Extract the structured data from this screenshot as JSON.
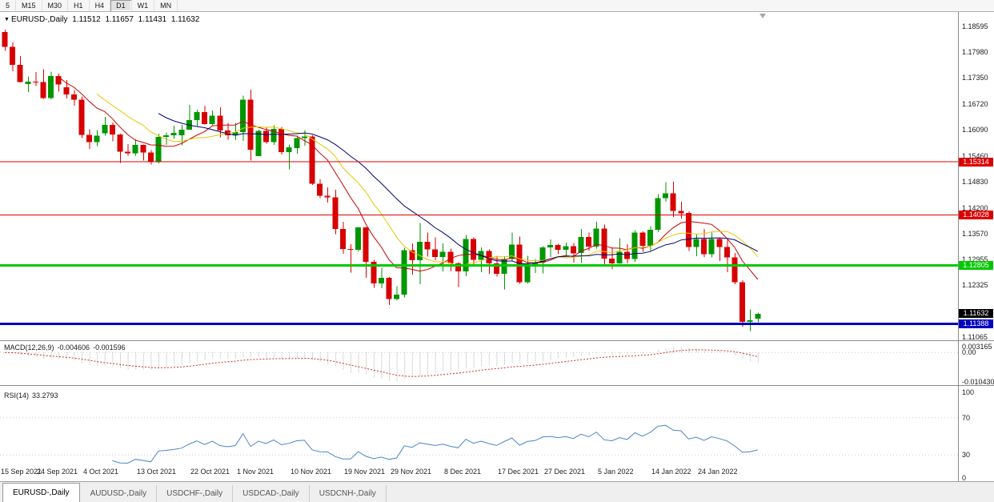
{
  "icons": {
    "symbol_dropdown": "▼"
  },
  "toolbar": {
    "timeframes": [
      {
        "label": "5",
        "active": false
      },
      {
        "label": "M15",
        "active": false
      },
      {
        "label": "M30",
        "active": false
      },
      {
        "label": "H1",
        "active": false
      },
      {
        "label": "H4",
        "active": false
      },
      {
        "label": "D1",
        "active": true
      },
      {
        "label": "W1",
        "active": false
      },
      {
        "label": "MN",
        "active": false
      }
    ]
  },
  "chart_header": {
    "symbol": "EURUSD-,Daily",
    "open": "1.11512",
    "high": "1.11657",
    "low": "1.11431",
    "close": "1.11632"
  },
  "price_axis_labels": [
    "1.18595",
    "1.17980",
    "1.17350",
    "1.16720",
    "1.16090",
    "1.15460",
    "1.14830",
    "1.14200",
    "1.13570",
    "1.12955",
    "1.12325",
    "1.11065"
  ],
  "bid_tag": {
    "label": "1.11632",
    "price": 1.11632,
    "color": "#000000"
  },
  "macd_panel": {
    "title": "MACD(12,26,9)",
    "value_main": "-0.004606",
    "value_signal": "-0.001596",
    "axis_labels": [
      "0.003165",
      "0.00",
      "-0.010430"
    ]
  },
  "rsi_panel": {
    "title": "RSI(14)",
    "value": "33.2793",
    "axis_labels": [
      "100",
      "70",
      "30",
      "0"
    ]
  },
  "time_axis": {
    "ticks": [
      {
        "i": 0,
        "label": "15 Sep 2021"
      },
      {
        "i": 7,
        "label": "24 Sep 2021"
      },
      {
        "i": 13,
        "label": "4 Oct 2021"
      },
      {
        "i": 20,
        "label": "13 Oct 2021"
      },
      {
        "i": 27,
        "label": "22 Oct 2021"
      },
      {
        "i": 33,
        "label": "1 Nov 2021"
      },
      {
        "i": 40,
        "label": "10 Nov 2021"
      },
      {
        "i": 47,
        "label": "19 Nov 2021"
      },
      {
        "i": 53,
        "label": "29 Nov 2021"
      },
      {
        "i": 60,
        "label": "8 Dec 2021"
      },
      {
        "i": 67,
        "label": "17 Dec 2021"
      },
      {
        "i": 73,
        "label": "27 Dec 2021"
      },
      {
        "i": 80,
        "label": "5 Jan 2022"
      },
      {
        "i": 87,
        "label": "14 Jan 2022"
      },
      {
        "i": 93,
        "label": "24 Jan 2022"
      }
    ]
  },
  "bottom_tabs": [
    {
      "label": "EURUSD-,Daily",
      "active": true
    },
    {
      "label": "AUDUSD-,Daily",
      "active": false
    },
    {
      "label": "USDCHF-,Daily",
      "active": false
    },
    {
      "label": "USDCAD-,Daily",
      "active": false
    },
    {
      "label": "USDCNH-,Daily",
      "active": false
    }
  ],
  "chart_data": {
    "type": "candlestick",
    "symbol": "EURUSD-",
    "timeframe": "Daily",
    "title": "EURUSD-,Daily",
    "last_ohlc": {
      "open": 1.11512,
      "high": 1.11657,
      "low": 1.11431,
      "close": 1.11632
    },
    "candle_colors": {
      "bull": "#009600",
      "bear": "#D80000"
    },
    "candle_format": [
      "date",
      "open",
      "high",
      "low",
      "close"
    ],
    "candles": [
      [
        "2021-09-15",
        1.1846,
        1.1852,
        1.18,
        1.181
      ],
      [
        "2021-09-16",
        1.181,
        1.1821,
        1.1751,
        1.1766
      ],
      [
        "2021-09-17",
        1.1766,
        1.1788,
        1.1724,
        1.1725
      ],
      [
        "2021-09-20",
        1.172,
        1.1738,
        1.17,
        1.1726
      ],
      [
        "2021-09-21",
        1.1726,
        1.1749,
        1.1715,
        1.1725
      ],
      [
        "2021-09-22",
        1.1725,
        1.1756,
        1.1684,
        1.1686
      ],
      [
        "2021-09-23",
        1.1686,
        1.175,
        1.1683,
        1.1739
      ],
      [
        "2021-09-24",
        1.1739,
        1.1745,
        1.1701,
        1.1719
      ],
      [
        "2021-09-27",
        1.1712,
        1.173,
        1.1685,
        1.1695
      ],
      [
        "2021-09-28",
        1.1695,
        1.1705,
        1.1667,
        1.1682
      ],
      [
        "2021-09-29",
        1.1682,
        1.169,
        1.1589,
        1.1597
      ],
      [
        "2021-09-30",
        1.1597,
        1.161,
        1.1563,
        1.1579
      ],
      [
        "2021-10-01",
        1.1579,
        1.1608,
        1.1569,
        1.1595
      ],
      [
        "2021-10-04",
        1.16,
        1.164,
        1.1595,
        1.1621
      ],
      [
        "2021-10-05",
        1.1621,
        1.1627,
        1.1581,
        1.1598
      ],
      [
        "2021-10-06",
        1.1598,
        1.16,
        1.1529,
        1.1556
      ],
      [
        "2021-10-07",
        1.1556,
        1.1574,
        1.1546,
        1.1552
      ],
      [
        "2021-10-08",
        1.1552,
        1.1586,
        1.1546,
        1.1572
      ],
      [
        "2021-10-11",
        1.1572,
        1.1573,
        1.1535,
        1.1554
      ],
      [
        "2021-10-12",
        1.1554,
        1.156,
        1.1525,
        1.1531
      ],
      [
        "2021-10-13",
        1.1531,
        1.16,
        1.1528,
        1.1592
      ],
      [
        "2021-10-14",
        1.1592,
        1.1602,
        1.1572,
        1.1596
      ],
      [
        "2021-10-15",
        1.1596,
        1.1619,
        1.1588,
        1.1601
      ],
      [
        "2021-10-18",
        1.1596,
        1.1621,
        1.1571,
        1.1609
      ],
      [
        "2021-10-19",
        1.1609,
        1.1669,
        1.1609,
        1.1633
      ],
      [
        "2021-10-20",
        1.1633,
        1.1658,
        1.1617,
        1.1652
      ],
      [
        "2021-10-21",
        1.1652,
        1.1667,
        1.1622,
        1.1623
      ],
      [
        "2021-10-22",
        1.1623,
        1.1656,
        1.162,
        1.1643
      ],
      [
        "2021-10-25",
        1.1643,
        1.1664,
        1.1591,
        1.1607
      ],
      [
        "2021-10-26",
        1.1607,
        1.1626,
        1.1585,
        1.1596
      ],
      [
        "2021-10-27",
        1.1596,
        1.1626,
        1.1584,
        1.1603
      ],
      [
        "2021-10-28",
        1.1603,
        1.1692,
        1.1582,
        1.1682
      ],
      [
        "2021-10-29",
        1.1682,
        1.1706,
        1.1535,
        1.1561
      ],
      [
        "2021-11-01",
        1.1545,
        1.1609,
        1.1545,
        1.1606
      ],
      [
        "2021-11-02",
        1.1606,
        1.1614,
        1.1575,
        1.1579
      ],
      [
        "2021-11-03",
        1.1579,
        1.162,
        1.1572,
        1.1611
      ],
      [
        "2021-11-04",
        1.1611,
        1.1616,
        1.1549,
        1.1555
      ],
      [
        "2021-11-05",
        1.1555,
        1.1573,
        1.1513,
        1.1567
      ],
      [
        "2021-11-08",
        1.1565,
        1.1595,
        1.1551,
        1.1589
      ],
      [
        "2021-11-09",
        1.1589,
        1.1608,
        1.157,
        1.1593
      ],
      [
        "2021-11-10",
        1.1593,
        1.1596,
        1.1475,
        1.1478
      ],
      [
        "2021-11-11",
        1.1478,
        1.1489,
        1.1443,
        1.1449
      ],
      [
        "2021-11-12",
        1.1449,
        1.147,
        1.1433,
        1.1445
      ],
      [
        "2021-11-15",
        1.1445,
        1.1464,
        1.1356,
        1.1369
      ],
      [
        "2021-11-16",
        1.1369,
        1.1386,
        1.1309,
        1.132
      ],
      [
        "2021-11-17",
        1.132,
        1.1332,
        1.1263,
        1.1318
      ],
      [
        "2021-11-18",
        1.1318,
        1.1374,
        1.1314,
        1.1373
      ],
      [
        "2021-11-19",
        1.1373,
        1.1374,
        1.125,
        1.1289
      ],
      [
        "2021-11-22",
        1.1289,
        1.1294,
        1.1226,
        1.1237
      ],
      [
        "2021-11-23",
        1.1237,
        1.1275,
        1.1225,
        1.125
      ],
      [
        "2021-11-24",
        1.125,
        1.1252,
        1.1184,
        1.1199
      ],
      [
        "2021-11-25",
        1.1199,
        1.123,
        1.1196,
        1.121
      ],
      [
        "2021-11-26",
        1.121,
        1.1323,
        1.1203,
        1.1317
      ],
      [
        "2021-11-29",
        1.1317,
        1.1334,
        1.1258,
        1.1293
      ],
      [
        "2021-11-30",
        1.1293,
        1.1383,
        1.1235,
        1.1338
      ],
      [
        "2021-12-01",
        1.1338,
        1.136,
        1.1302,
        1.1319
      ],
      [
        "2021-12-02",
        1.1319,
        1.1348,
        1.1293,
        1.1301
      ],
      [
        "2021-12-03",
        1.1301,
        1.1334,
        1.1266,
        1.1313
      ],
      [
        "2021-12-06",
        1.1313,
        1.1321,
        1.1267,
        1.1285
      ],
      [
        "2021-12-07",
        1.1285,
        1.1288,
        1.1228,
        1.1266
      ],
      [
        "2021-12-08",
        1.1266,
        1.1354,
        1.1254,
        1.1344
      ],
      [
        "2021-12-09",
        1.1344,
        1.1348,
        1.128,
        1.1294
      ],
      [
        "2021-12-10",
        1.1294,
        1.1324,
        1.1264,
        1.1315
      ],
      [
        "2021-12-13",
        1.1315,
        1.1319,
        1.126,
        1.1285
      ],
      [
        "2021-12-14",
        1.1285,
        1.1304,
        1.1253,
        1.126
      ],
      [
        "2021-12-15",
        1.126,
        1.1303,
        1.1222,
        1.1296
      ],
      [
        "2021-12-16",
        1.1296,
        1.136,
        1.1292,
        1.1331
      ],
      [
        "2021-12-17",
        1.1331,
        1.135,
        1.1236,
        1.124
      ],
      [
        "2021-12-20",
        1.124,
        1.1304,
        1.1237,
        1.1278
      ],
      [
        "2021-12-21",
        1.1278,
        1.1296,
        1.1262,
        1.1287
      ],
      [
        "2021-12-22",
        1.1287,
        1.1327,
        1.1261,
        1.1324
      ],
      [
        "2021-12-23",
        1.1324,
        1.1343,
        1.1301,
        1.133
      ],
      [
        "2021-12-24",
        1.133,
        1.1333,
        1.1308,
        1.1318
      ],
      [
        "2021-12-27",
        1.1318,
        1.1336,
        1.1304,
        1.1327
      ],
      [
        "2021-12-28",
        1.1327,
        1.1335,
        1.1287,
        1.131
      ],
      [
        "2021-12-29",
        1.131,
        1.1369,
        1.1286,
        1.1349
      ],
      [
        "2021-12-30",
        1.1349,
        1.136,
        1.1316,
        1.1326
      ],
      [
        "2021-12-31",
        1.1326,
        1.1386,
        1.1321,
        1.137
      ],
      [
        "2022-01-03",
        1.137,
        1.1379,
        1.1279,
        1.1297
      ],
      [
        "2022-01-04",
        1.1297,
        1.1324,
        1.1272,
        1.1285
      ],
      [
        "2022-01-05",
        1.1285,
        1.1346,
        1.1284,
        1.1313
      ],
      [
        "2022-01-06",
        1.1313,
        1.1332,
        1.1285,
        1.1296
      ],
      [
        "2022-01-07",
        1.1296,
        1.1366,
        1.1289,
        1.136
      ],
      [
        "2022-01-10",
        1.136,
        1.1363,
        1.1313,
        1.1328
      ],
      [
        "2022-01-11",
        1.1328,
        1.1375,
        1.1314,
        1.1367
      ],
      [
        "2022-01-12",
        1.1367,
        1.1453,
        1.1361,
        1.1443
      ],
      [
        "2022-01-13",
        1.1443,
        1.1482,
        1.1435,
        1.1455
      ],
      [
        "2022-01-14",
        1.1455,
        1.1483,
        1.1398,
        1.1412
      ],
      [
        "2022-01-17",
        1.1412,
        1.1435,
        1.1394,
        1.1407
      ],
      [
        "2022-01-18",
        1.1407,
        1.1411,
        1.1315,
        1.1325
      ],
      [
        "2022-01-19",
        1.1325,
        1.1357,
        1.1303,
        1.1344
      ],
      [
        "2022-01-20",
        1.1344,
        1.1369,
        1.1301,
        1.1308
      ],
      [
        "2022-01-21",
        1.1308,
        1.136,
        1.13,
        1.1344
      ],
      [
        "2022-01-24",
        1.1344,
        1.1348,
        1.1291,
        1.1325
      ],
      [
        "2022-01-25",
        1.1325,
        1.1344,
        1.1264,
        1.13
      ],
      [
        "2022-01-26",
        1.13,
        1.131,
        1.1235,
        1.124
      ],
      [
        "2022-01-27",
        1.124,
        1.1245,
        1.1131,
        1.1144
      ],
      [
        "2022-01-28",
        1.1144,
        1.1174,
        1.1121,
        1.1148
      ],
      [
        "2022-01-31",
        1.11512,
        1.11657,
        1.11431,
        1.11632
      ]
    ],
    "overlays": [
      {
        "name": "ma-fast",
        "type": "sma",
        "period": 8,
        "color": "#C80000"
      },
      {
        "name": "ma-mid",
        "type": "sma",
        "period": 13,
        "color": "#E6C800"
      },
      {
        "name": "ma-slow",
        "type": "sma",
        "period": 21,
        "color": "#000078"
      }
    ],
    "indicators": [
      {
        "name": "MACD",
        "params": [
          12,
          26,
          9
        ],
        "histogram_color": "#B4B4B4",
        "signal_color": "#C83232",
        "last_main": -0.004606,
        "last_signal": -0.001596
      },
      {
        "name": "RSI",
        "params": [
          14
        ],
        "color": "#4A86C8",
        "levels": [
          70,
          30
        ],
        "last_value": 33.2793
      }
    ],
    "horizontal_lines": [
      {
        "price": 1.15314,
        "label": "1.15314",
        "color": "#DC0000",
        "width": 1
      },
      {
        "price": 1.14028,
        "label": "1.14028",
        "color": "#DC0000",
        "width": 1
      },
      {
        "price": 1.12805,
        "label": "1.12805",
        "color": "#00C800",
        "width": 3
      },
      {
        "price": 1.11388,
        "label": "1.11388",
        "color": "#0000C0",
        "width": 3
      }
    ]
  }
}
